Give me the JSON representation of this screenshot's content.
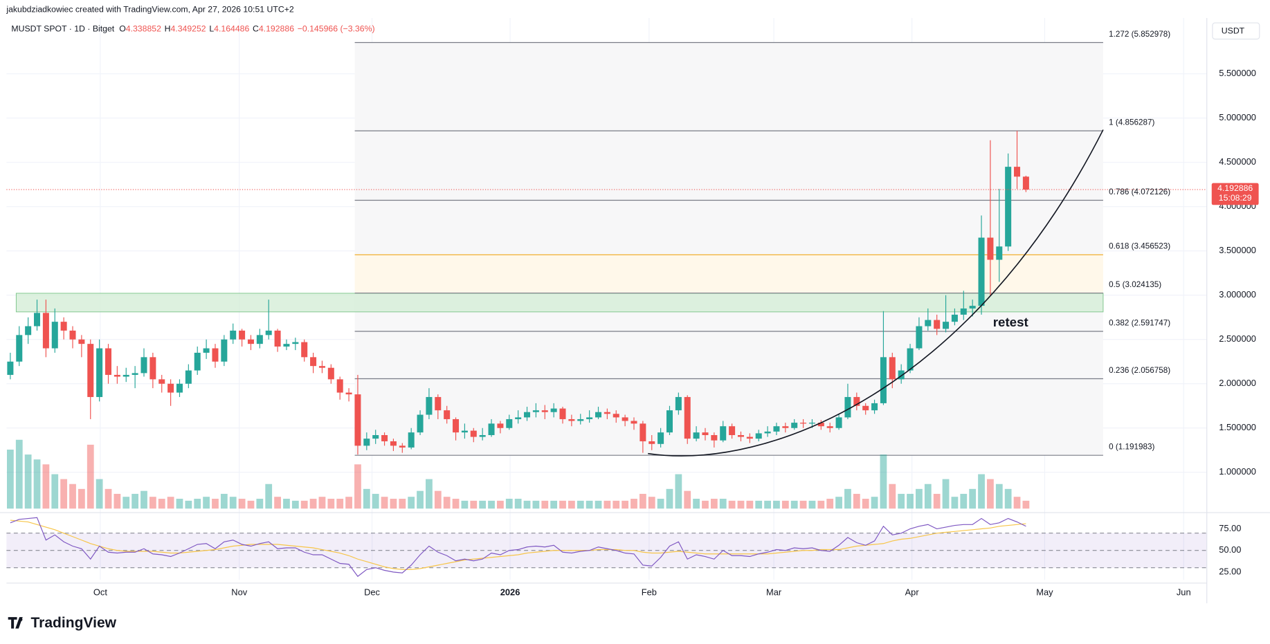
{
  "chart_data": {
    "type": "candlestick",
    "attribution": "jakubdziadkowiec created with TradingView.com, Apr 27, 2026 10:51 UTC+2",
    "symbol": "MUSDT SPOT · 1D · Bitget",
    "ohlc_letters": [
      "O",
      "H",
      "L",
      "C"
    ],
    "change": "−0.145966 (−3.36%)",
    "quote_currency": "USDT",
    "up_color": "#26a69a",
    "down_color": "#ef5350",
    "ohlc": {
      "open": [
        2.1,
        2.25,
        2.55,
        2.65,
        2.8,
        2.4,
        2.7,
        2.6,
        2.5,
        2.45,
        1.85,
        2.4,
        2.1,
        2.08,
        2.1,
        2.12,
        2.3,
        2.05,
        2.0,
        1.9,
        2.0,
        2.15,
        2.35,
        2.4,
        2.25,
        2.5,
        2.6,
        2.5,
        2.45,
        2.55,
        2.6,
        2.42,
        2.45,
        2.47,
        2.3,
        2.2,
        2.18,
        2.05,
        1.9,
        1.88,
        1.3,
        1.38,
        1.42,
        1.35,
        1.3,
        1.28,
        1.45,
        1.65,
        1.85,
        1.7,
        1.6,
        1.45,
        1.47,
        1.4,
        1.42,
        1.55,
        1.5,
        1.6,
        1.62,
        1.68,
        1.7,
        1.68,
        1.72,
        1.6,
        1.58,
        1.6,
        1.62,
        1.68,
        1.66,
        1.62,
        1.58,
        1.55,
        1.35,
        1.32,
        1.45,
        1.7,
        1.85,
        1.38,
        1.45,
        1.42,
        1.36,
        1.52,
        1.42,
        1.4,
        1.38,
        1.44,
        1.46,
        1.52,
        1.5,
        1.56,
        1.55,
        1.56,
        1.52,
        1.5,
        1.62,
        1.85,
        1.75,
        1.7,
        1.78,
        2.3,
        2.05,
        2.15,
        2.4,
        2.65,
        2.72,
        2.62,
        2.7,
        2.78,
        2.85,
        2.88,
        3.65,
        3.4,
        3.55,
        4.45,
        4.338852
      ],
      "high": [
        2.35,
        2.65,
        2.75,
        2.95,
        2.95,
        2.85,
        2.75,
        2.65,
        2.55,
        2.5,
        2.5,
        2.45,
        2.2,
        2.18,
        2.2,
        2.4,
        2.35,
        2.1,
        2.05,
        2.05,
        2.22,
        2.42,
        2.5,
        2.45,
        2.55,
        2.68,
        2.62,
        2.55,
        2.62,
        2.95,
        2.62,
        2.5,
        2.52,
        2.5,
        2.35,
        2.26,
        2.22,
        2.08,
        1.95,
        2.1,
        1.45,
        1.48,
        1.45,
        1.38,
        1.33,
        1.5,
        1.7,
        1.95,
        1.88,
        1.75,
        1.62,
        1.55,
        1.5,
        1.5,
        1.6,
        1.58,
        1.65,
        1.7,
        1.74,
        1.78,
        1.76,
        1.78,
        1.74,
        1.65,
        1.66,
        1.7,
        1.74,
        1.72,
        1.7,
        1.65,
        1.62,
        1.58,
        1.42,
        1.5,
        1.75,
        1.9,
        1.87,
        1.52,
        1.5,
        1.45,
        1.58,
        1.55,
        1.46,
        1.44,
        1.48,
        1.52,
        1.56,
        1.56,
        1.6,
        1.6,
        1.6,
        1.59,
        1.56,
        1.66,
        2.0,
        1.9,
        1.78,
        1.82,
        2.82,
        2.35,
        2.22,
        2.45,
        2.75,
        2.85,
        2.78,
        3.0,
        2.85,
        3.05,
        2.95,
        3.9,
        4.75,
        4.2,
        4.6,
        4.856287,
        4.349252
      ],
      "low": [
        2.05,
        2.2,
        2.45,
        2.6,
        2.3,
        2.35,
        2.5,
        2.4,
        2.3,
        1.6,
        1.8,
        2.0,
        2.0,
        2.02,
        1.95,
        2.08,
        1.95,
        1.9,
        1.75,
        1.85,
        1.95,
        2.1,
        2.28,
        2.18,
        2.2,
        2.45,
        2.42,
        2.38,
        2.4,
        2.5,
        2.36,
        2.38,
        2.38,
        2.25,
        2.12,
        2.12,
        2.0,
        1.82,
        1.8,
        1.2,
        1.25,
        1.32,
        1.3,
        1.24,
        1.22,
        1.26,
        1.42,
        1.6,
        1.6,
        1.55,
        1.36,
        1.38,
        1.34,
        1.36,
        1.4,
        1.44,
        1.48,
        1.55,
        1.58,
        1.62,
        1.6,
        1.62,
        1.55,
        1.52,
        1.54,
        1.56,
        1.6,
        1.6,
        1.56,
        1.52,
        1.48,
        1.22,
        1.25,
        1.28,
        1.42,
        1.65,
        1.32,
        1.35,
        1.36,
        1.28,
        1.34,
        1.38,
        1.35,
        1.33,
        1.35,
        1.4,
        1.42,
        1.45,
        1.48,
        1.5,
        1.5,
        1.48,
        1.45,
        1.48,
        1.6,
        1.7,
        1.65,
        1.66,
        1.76,
        1.95,
        2.0,
        2.12,
        2.38,
        2.6,
        2.55,
        2.58,
        2.66,
        2.72,
        2.76,
        2.78,
        3.0,
        3.15,
        3.5,
        4.2,
        4.164486
      ],
      "close": [
        2.25,
        2.55,
        2.65,
        2.8,
        2.4,
        2.7,
        2.6,
        2.5,
        2.45,
        1.85,
        2.4,
        2.1,
        2.08,
        2.1,
        2.12,
        2.3,
        2.05,
        2.0,
        1.9,
        2.0,
        2.15,
        2.35,
        2.4,
        2.25,
        2.5,
        2.6,
        2.5,
        2.45,
        2.55,
        2.6,
        2.42,
        2.45,
        2.47,
        2.3,
        2.2,
        2.18,
        2.05,
        1.9,
        1.88,
        1.3,
        1.38,
        1.42,
        1.35,
        1.3,
        1.28,
        1.45,
        1.65,
        1.85,
        1.7,
        1.6,
        1.45,
        1.47,
        1.4,
        1.42,
        1.55,
        1.5,
        1.6,
        1.62,
        1.68,
        1.7,
        1.68,
        1.72,
        1.6,
        1.58,
        1.6,
        1.62,
        1.68,
        1.66,
        1.62,
        1.58,
        1.55,
        1.35,
        1.32,
        1.45,
        1.7,
        1.85,
        1.38,
        1.45,
        1.42,
        1.36,
        1.52,
        1.42,
        1.4,
        1.38,
        1.44,
        1.46,
        1.52,
        1.5,
        1.56,
        1.55,
        1.56,
        1.52,
        1.5,
        1.62,
        1.85,
        1.75,
        1.7,
        1.78,
        2.3,
        2.05,
        2.15,
        2.4,
        2.65,
        2.72,
        2.62,
        2.7,
        2.78,
        2.85,
        2.88,
        3.65,
        3.4,
        3.55,
        4.45,
        4.338852,
        4.192886
      ]
    },
    "volume": [
      60,
      70,
      55,
      50,
      45,
      35,
      30,
      25,
      20,
      65,
      30,
      20,
      15,
      12,
      15,
      18,
      12,
      10,
      12,
      10,
      8,
      10,
      12,
      10,
      15,
      12,
      10,
      8,
      10,
      25,
      12,
      10,
      8,
      8,
      10,
      12,
      10,
      10,
      12,
      45,
      20,
      15,
      12,
      10,
      10,
      12,
      18,
      30,
      18,
      12,
      10,
      8,
      8,
      8,
      8,
      8,
      10,
      10,
      8,
      8,
      8,
      8,
      8,
      8,
      8,
      8,
      8,
      8,
      8,
      8,
      10,
      15,
      12,
      10,
      20,
      35,
      18,
      10,
      8,
      10,
      10,
      8,
      8,
      8,
      8,
      8,
      8,
      8,
      8,
      8,
      8,
      8,
      10,
      12,
      20,
      15,
      10,
      12,
      55,
      25,
      15,
      15,
      20,
      25,
      15,
      30,
      12,
      15,
      20,
      35,
      30,
      25,
      20,
      12,
      8
    ],
    "xlim": [
      -0.43,
      134.3
    ],
    "xticks": [
      {
        "value": 10.1,
        "label": "Oct"
      },
      {
        "value": 25.7,
        "label": "Nov"
      },
      {
        "value": 40.6,
        "label": "Dec"
      },
      {
        "value": 56.1,
        "label": "2026"
      },
      {
        "value": 71.7,
        "label": "Feb"
      },
      {
        "value": 85.7,
        "label": "Mar"
      },
      {
        "value": 101.2,
        "label": "Apr"
      },
      {
        "value": 116.1,
        "label": "May"
      },
      {
        "value": 131.7,
        "label": "Jun"
      }
    ],
    "ylim": [
      0.59,
      6.13
    ],
    "yticks": [
      {
        "value": 1,
        "label": "1.000000"
      },
      {
        "value": 1.5,
        "label": "1.500000"
      },
      {
        "value": 2,
        "label": "2.000000"
      },
      {
        "value": 2.5,
        "label": "2.500000"
      },
      {
        "value": 3,
        "label": "3.000000"
      },
      {
        "value": 3.5,
        "label": "3.500000"
      },
      {
        "value": 4,
        "label": "4.000000"
      },
      {
        "value": 4.5,
        "label": "4.500000"
      },
      {
        "value": 5,
        "label": "5.000000"
      },
      {
        "value": 5.5,
        "label": "5.500000"
      }
    ],
    "grid": true,
    "fib_levels": [
      {
        "label": "1.272 (5.852978)",
        "value": 5.852978,
        "color": "#787b86",
        "fill": "#f7f7f8"
      },
      {
        "label": "1 (4.856287)",
        "value": 4.856287,
        "color": "#787b86",
        "fill": "#f7f7f8"
      },
      {
        "label": "0.786 (4.072126)",
        "value": 4.072126,
        "color": "#787b86",
        "fill": "#f7f7f8"
      },
      {
        "label": "0.618 (3.456523)",
        "value": 3.456523,
        "color": "#f0a81a",
        "fill": "#fff8ea"
      },
      {
        "label": "0.5 (3.024135)",
        "value": 3.024135,
        "color": "#787b86",
        "fill": "#f7f7f8"
      },
      {
        "label": "0.382 (2.591747)",
        "value": 2.591747,
        "color": "#787b86",
        "fill": "#f7f7f8"
      },
      {
        "label": "0.236 (2.056758)",
        "value": 2.056758,
        "color": "#787b86",
        "fill": "#f7f7f8"
      },
      {
        "label": "0 (1.191983)",
        "value": 1.191983,
        "color": "#787b86"
      }
    ],
    "annotation": "retest",
    "last_price_countdown": "15:08:29",
    "rsi": {
      "values": [
        82,
        86,
        87,
        88,
        62,
        68,
        60,
        55,
        52,
        40,
        55,
        48,
        47,
        48,
        48,
        52,
        46,
        45,
        43,
        47,
        52,
        57,
        58,
        52,
        60,
        62,
        57,
        55,
        58,
        60,
        52,
        53,
        53,
        48,
        45,
        45,
        40,
        35,
        34,
        20,
        28,
        30,
        27,
        25,
        24,
        33,
        45,
        55,
        48,
        44,
        38,
        40,
        38,
        40,
        47,
        45,
        50,
        51,
        54,
        55,
        54,
        56,
        48,
        47,
        49,
        50,
        54,
        52,
        50,
        47,
        46,
        33,
        32,
        42,
        55,
        60,
        40,
        45,
        43,
        40,
        50,
        44,
        44,
        43,
        46,
        48,
        51,
        50,
        53,
        52,
        53,
        50,
        49,
        56,
        65,
        59,
        56,
        61,
        78,
        68,
        70,
        75,
        78,
        80,
        75,
        77,
        79,
        80,
        80,
        87,
        80,
        82,
        87,
        83,
        78
      ],
      "ma": [
        85,
        84,
        83,
        80,
        77,
        74,
        70,
        66,
        62,
        58,
        55,
        52,
        50,
        49,
        49,
        49,
        49,
        48,
        47,
        47,
        48,
        49,
        50,
        51,
        53,
        55,
        56,
        57,
        57,
        57,
        57,
        56,
        55,
        54,
        53,
        51,
        49,
        47,
        44,
        40,
        37,
        34,
        31,
        29,
        28,
        28,
        29,
        31,
        33,
        35,
        37,
        39,
        40,
        41,
        42,
        43,
        44,
        45,
        47,
        48,
        49,
        50,
        50,
        50,
        50,
        50,
        51,
        51,
        51,
        50,
        50,
        48,
        47,
        47,
        48,
        49,
        48,
        47,
        46,
        46,
        46,
        46,
        46,
        46,
        46,
        46,
        47,
        48,
        49,
        50,
        50,
        51,
        51,
        51,
        53,
        55,
        56,
        57,
        58,
        61,
        63,
        64,
        66,
        68,
        70,
        71,
        72,
        73,
        74,
        75,
        76,
        78,
        79,
        80,
        81
      ],
      "ylim": [
        16,
        90
      ],
      "yticks": [
        {
          "value": 75,
          "label": "75.00"
        },
        {
          "value": 50,
          "label": "50.00"
        },
        {
          "value": 25,
          "label": "25.00"
        }
      ],
      "bands": [
        30,
        50,
        70
      ],
      "color": "#7e57c2",
      "ma_color": "#f7c548"
    },
    "logo": "TradingView"
  }
}
